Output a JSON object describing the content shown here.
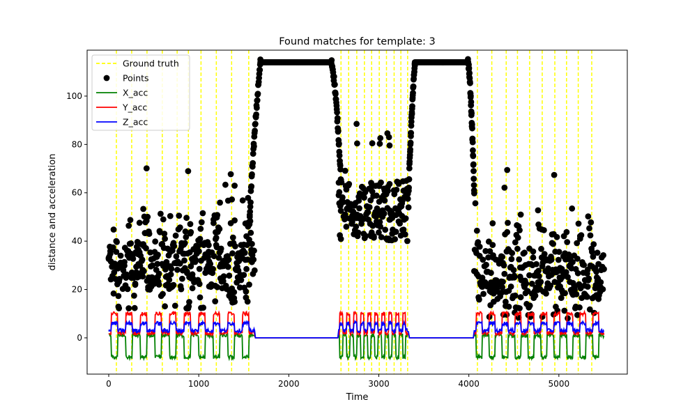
{
  "chart_data": {
    "type": "scatter",
    "title": "Found matches for template: 3",
    "xlabel": "Time",
    "ylabel": "distance and acceleration",
    "xlim": [
      -240,
      5760
    ],
    "ylim": [
      -15,
      119
    ],
    "xticks": [
      0,
      1000,
      2000,
      3000,
      4000,
      5000
    ],
    "yticks": [
      0,
      20,
      40,
      60,
      80,
      100
    ],
    "grid": false,
    "legend_position": "top-left",
    "legend": [
      {
        "label": "Ground truth",
        "kind": "dashed-line",
        "color": "#ffff00"
      },
      {
        "label": "Points",
        "kind": "marker",
        "color": "#000000"
      },
      {
        "label": "X_acc",
        "kind": "line",
        "color": "#008000"
      },
      {
        "label": "Y_acc",
        "kind": "line",
        "color": "#ff0000"
      },
      {
        "label": "Z_acc",
        "kind": "line",
        "color": "#0000ff"
      }
    ],
    "ground_truth_x": [
      85,
      255,
      425,
      595,
      760,
      885,
      1025,
      1195,
      1365,
      1555,
      2580,
      2665,
      2755,
      2840,
      2920,
      3005,
      3085,
      3170,
      3245,
      3320,
      4095,
      4255,
      4415,
      4540,
      4675,
      4815,
      4955,
      5085,
      5215,
      5365
    ],
    "segments": [
      {
        "start": 0,
        "end": 1620,
        "gt": [
          85,
          255,
          425,
          595,
          760,
          885,
          1025,
          1195,
          1365,
          1555
        ],
        "points_low": 12,
        "points_high": 52
      },
      {
        "start": 2555,
        "end": 3330,
        "gt": [
          2580,
          2665,
          2755,
          2840,
          2920,
          3005,
          3085,
          3170,
          3245,
          3320
        ],
        "points_low": 40,
        "points_high": 65
      },
      {
        "start": 4060,
        "end": 5500,
        "gt": [
          4095,
          4255,
          4415,
          4540,
          4675,
          4815,
          4955,
          5085,
          5215,
          5365
        ],
        "points_low": 8,
        "points_high": 48
      }
    ],
    "plateaus": [
      {
        "start": 1685,
        "end": 2470,
        "value": 114
      },
      {
        "start": 3400,
        "end": 3990,
        "value": 114
      }
    ],
    "series": [
      {
        "name": "X_acc",
        "color": "#008000",
        "active_high": 1,
        "active_low": -8,
        "idle": 0
      },
      {
        "name": "Y_acc",
        "color": "#ff0000",
        "active_high": 10,
        "active_low": 2,
        "idle": 0
      },
      {
        "name": "Z_acc",
        "color": "#0000ff",
        "active_high": 6,
        "active_low": 3,
        "idle": 0
      }
    ]
  }
}
